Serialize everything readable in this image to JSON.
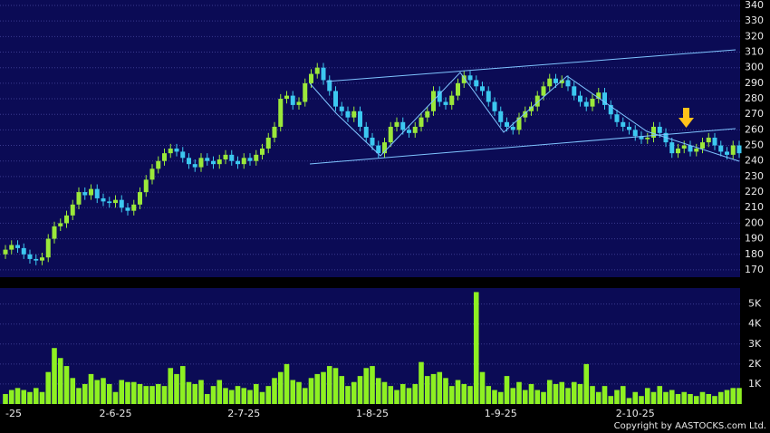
{
  "chart_data": [
    {
      "type": "candlestick",
      "up_color": "#9be83a",
      "down_color": "#3cc8f0",
      "open": [
        180,
        183,
        186,
        184,
        180,
        177,
        176,
        178,
        190,
        198,
        200,
        205,
        212,
        220,
        218,
        222,
        216,
        214,
        213,
        215,
        210,
        208,
        212,
        220,
        228,
        235,
        240,
        245,
        248,
        246,
        242,
        238,
        236,
        242,
        240,
        238,
        241,
        244,
        240,
        238,
        242,
        240,
        244,
        248,
        255,
        262,
        280,
        282,
        276,
        278,
        290,
        296,
        300,
        292,
        285,
        275,
        272,
        268,
        272,
        262,
        255,
        250,
        245,
        252,
        262,
        265,
        260,
        258,
        262,
        268,
        272,
        285,
        278,
        276,
        282,
        290,
        295,
        292,
        288,
        285,
        278,
        272,
        265,
        262,
        260,
        268,
        272,
        275,
        282,
        288,
        293,
        290,
        292,
        288,
        282,
        278,
        275,
        280,
        284,
        276,
        270,
        265,
        262,
        260,
        256,
        254,
        255,
        262,
        258,
        252,
        245,
        248,
        250,
        246,
        248,
        252,
        255,
        250,
        246,
        244,
        250
      ],
      "high": [
        186,
        189,
        189,
        187,
        183,
        180,
        181,
        193,
        201,
        203,
        208,
        215,
        223,
        223,
        225,
        225,
        219,
        217,
        218,
        218,
        213,
        215,
        223,
        231,
        238,
        243,
        248,
        251,
        251,
        249,
        245,
        241,
        245,
        245,
        243,
        244,
        247,
        247,
        243,
        245,
        245,
        247,
        251,
        258,
        265,
        283,
        285,
        285,
        281,
        293,
        299,
        303,
        303,
        295,
        288,
        278,
        275,
        275,
        275,
        265,
        258,
        253,
        255,
        265,
        268,
        268,
        263,
        265,
        271,
        275,
        288,
        288,
        281,
        285,
        293,
        298,
        298,
        295,
        291,
        288,
        281,
        275,
        268,
        265,
        271,
        275,
        278,
        285,
        291,
        296,
        296,
        295,
        295,
        291,
        285,
        281,
        283,
        287,
        287,
        279,
        273,
        268,
        265,
        263,
        259,
        258,
        265,
        265,
        261,
        255,
        251,
        253,
        253,
        251,
        255,
        258,
        258,
        253,
        249,
        253,
        253
      ],
      "low": [
        177,
        180,
        181,
        177,
        174,
        173,
        173,
        175,
        187,
        195,
        197,
        202,
        209,
        215,
        215,
        213,
        211,
        210,
        210,
        207,
        205,
        205,
        209,
        217,
        225,
        232,
        237,
        242,
        243,
        239,
        235,
        233,
        233,
        237,
        235,
        235,
        238,
        237,
        235,
        235,
        237,
        237,
        241,
        245,
        252,
        259,
        277,
        273,
        273,
        275,
        287,
        293,
        289,
        282,
        272,
        269,
        265,
        265,
        259,
        252,
        247,
        242,
        242,
        249,
        259,
        257,
        255,
        255,
        259,
        265,
        269,
        275,
        273,
        273,
        279,
        287,
        289,
        285,
        282,
        275,
        269,
        262,
        259,
        257,
        257,
        265,
        269,
        272,
        279,
        285,
        287,
        287,
        285,
        279,
        275,
        272,
        272,
        277,
        273,
        267,
        262,
        259,
        257,
        253,
        251,
        251,
        252,
        255,
        249,
        242,
        242,
        245,
        243,
        243,
        245,
        249,
        247,
        243,
        241,
        241,
        242
      ],
      "close": [
        183,
        186,
        184,
        180,
        177,
        176,
        178,
        190,
        198,
        200,
        205,
        212,
        220,
        218,
        222,
        216,
        214,
        213,
        215,
        210,
        208,
        212,
        220,
        228,
        235,
        240,
        245,
        248,
        246,
        242,
        238,
        236,
        242,
        240,
        238,
        241,
        244,
        240,
        238,
        242,
        240,
        244,
        248,
        255,
        262,
        280,
        282,
        276,
        278,
        290,
        296,
        300,
        292,
        285,
        275,
        272,
        268,
        272,
        262,
        255,
        250,
        245,
        252,
        262,
        265,
        260,
        258,
        262,
        268,
        272,
        285,
        278,
        276,
        282,
        290,
        295,
        292,
        288,
        285,
        278,
        272,
        265,
        262,
        260,
        268,
        272,
        275,
        282,
        288,
        293,
        290,
        292,
        288,
        282,
        278,
        275,
        280,
        284,
        276,
        270,
        265,
        262,
        260,
        256,
        254,
        255,
        262,
        258,
        252,
        245,
        248,
        250,
        246,
        248,
        252,
        255,
        250,
        246,
        244,
        250,
        245
      ],
      "ylim": [
        165.3,
        343.5
      ],
      "yticks": [
        170,
        180,
        190,
        200,
        210,
        220,
        230,
        240,
        250,
        260,
        270,
        280,
        290,
        300,
        310,
        320,
        330,
        340
      ],
      "grid": true
    },
    {
      "type": "bar",
      "color": "#8ef022",
      "categories": [
        "-25",
        null,
        null,
        null,
        null,
        null,
        null,
        null,
        null,
        null,
        null,
        null,
        null,
        null,
        null,
        null,
        null,
        null,
        "2-6-25",
        null,
        null,
        null,
        null,
        null,
        null,
        null,
        null,
        null,
        null,
        null,
        null,
        null,
        null,
        null,
        null,
        null,
        null,
        null,
        null,
        "2-7-25",
        null,
        null,
        null,
        null,
        null,
        null,
        null,
        null,
        null,
        null,
        null,
        null,
        null,
        null,
        null,
        null,
        null,
        null,
        null,
        null,
        "1-8-25",
        null,
        null,
        null,
        null,
        null,
        null,
        null,
        null,
        null,
        null,
        null,
        null,
        null,
        null,
        null,
        null,
        null,
        null,
        null,
        null,
        "1-9-25",
        null,
        null,
        null,
        null,
        null,
        null,
        null,
        null,
        null,
        null,
        null,
        null,
        null,
        null,
        null,
        null,
        null,
        null,
        null,
        null,
        null,
        "2-10-25",
        null,
        null,
        null,
        null,
        null,
        null,
        null,
        null,
        null,
        null,
        null,
        null,
        null,
        null,
        null,
        null,
        null
      ],
      "values": [
        500,
        700,
        800,
        700,
        600,
        800,
        600,
        1600,
        2800,
        2300,
        1900,
        1300,
        800,
        1000,
        1500,
        1200,
        1300,
        1000,
        600,
        1200,
        1100,
        1100,
        1000,
        900,
        900,
        1000,
        900,
        1800,
        1500,
        1900,
        1100,
        1000,
        1200,
        500,
        900,
        1200,
        800,
        700,
        900,
        800,
        700,
        1000,
        600,
        900,
        1300,
        1600,
        2000,
        1200,
        1100,
        800,
        1300,
        1500,
        1600,
        1900,
        1800,
        1400,
        900,
        1100,
        1400,
        1800,
        1900,
        1300,
        1100,
        900,
        700,
        1000,
        800,
        1000,
        2100,
        1400,
        1500,
        1600,
        1300,
        900,
        1200,
        1000,
        900,
        5600,
        1600,
        900,
        700,
        600,
        1400,
        800,
        1100,
        700,
        1000,
        700,
        600,
        1200,
        1000,
        1100,
        800,
        1100,
        1000,
        2000,
        900,
        600,
        900,
        400,
        700,
        900,
        300,
        600,
        400,
        800,
        600,
        900,
        600,
        700,
        500,
        600,
        500,
        400,
        600,
        500,
        400,
        600,
        700,
        800,
        800
      ],
      "ylim": [
        0,
        5800
      ],
      "yticks": [
        {
          "value": 1000,
          "label": "1K"
        },
        {
          "value": 2000,
          "label": "2K"
        },
        {
          "value": 3000,
          "label": "3K"
        },
        {
          "value": 4000,
          "label": "4K"
        },
        {
          "value": 5000,
          "label": "5K"
        }
      ],
      "grid": true,
      "credit": "Copyright by AASTOCKS.com Ltd."
    }
  ]
}
